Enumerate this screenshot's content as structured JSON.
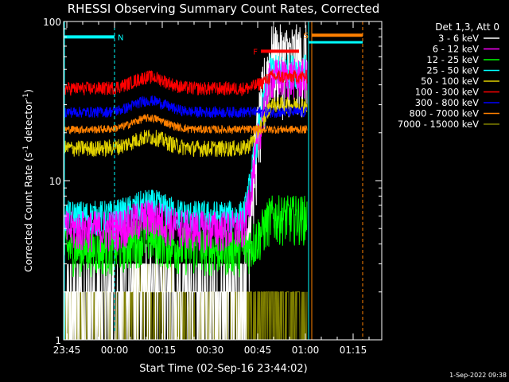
{
  "chart_data": {
    "type": "line",
    "title": "RHESSI Observing Summary Count Rates, Corrected",
    "xlabel": "Start Time (02-Sep-16 23:44:02)",
    "ylabel_main": "Corrected Count Rate (s",
    "ylabel_sup1": "-1",
    "ylabel_mid": " detector",
    "ylabel_sup2": "-1",
    "ylabel_end": ")",
    "y_scale": "log",
    "ylim": [
      1,
      100
    ],
    "xlim_minutes": [
      0,
      100
    ],
    "x_ticks": [
      {
        "label": "23:45",
        "minute": 1
      },
      {
        "label": "00:00",
        "minute": 16
      },
      {
        "label": "00:15",
        "minute": 31
      },
      {
        "label": "00:30",
        "minute": 46
      },
      {
        "label": "00:45",
        "minute": 61
      },
      {
        "label": "01:00",
        "minute": 76
      },
      {
        "label": "01:15",
        "minute": 91
      }
    ],
    "y_ticks": [
      {
        "label": "1",
        "value": 1
      },
      {
        "label": "10",
        "value": 10
      },
      {
        "label": "100",
        "value": 100
      }
    ],
    "legend_header": "Det 1,3, Att 0",
    "legend_position": "right",
    "series": [
      {
        "name": "3 - 6 keV",
        "color": "#ffffff",
        "base": 2,
        "noise": 0.6,
        "flare_peak": 60
      },
      {
        "name": "6 - 12 keV",
        "color": "#ff00ff",
        "base": 5,
        "noise": 0.3,
        "flare_peak": 45
      },
      {
        "name": "12 - 25 keV",
        "color": "#00ff00",
        "base": 3.8,
        "noise": 0.35,
        "flare_peak": 6
      },
      {
        "name": "25 - 50 keV",
        "color": "#00ffff",
        "base": 6,
        "noise": 0.25,
        "flare_peak": 50
      },
      {
        "name": "50 - 100 keV",
        "color": "#e0d000",
        "base": 16,
        "noise": 0.12,
        "flare_peak": 30
      },
      {
        "name": "100 - 300 keV",
        "color": "#ff0000",
        "base": 38,
        "noise": 0.1,
        "flare_peak": 45
      },
      {
        "name": "300 - 800 keV",
        "color": "#0000ff",
        "base": 27,
        "noise": 0.08,
        "flare_peak": 24
      },
      {
        "name": "800 - 7000 keV",
        "color": "#ff8000",
        "base": 21,
        "noise": 0.06,
        "flare_peak": 19
      },
      {
        "name": "7000 - 15000 keV",
        "color": "#808000",
        "base": 1.5,
        "noise": 0.6,
        "flare_peak": 1.5
      }
    ],
    "annotations": [
      {
        "label": "N",
        "color": "#00ffff",
        "kind": "night",
        "start_minute": 0,
        "end_minute": 16,
        "value": 80
      },
      {
        "label": "F",
        "color": "#ff0000",
        "kind": "flare",
        "start_minute": 62,
        "end_minute": 74,
        "value": 65
      },
      {
        "label": "S",
        "color": "#ff8000",
        "kind": "saa",
        "start_minute": 78,
        "end_minute": 94,
        "value": 82
      }
    ],
    "data_end_minute": 76.5,
    "night_start_minute": 77
  },
  "footer": {
    "timestamp": "1-Sep-2022 09:38"
  }
}
